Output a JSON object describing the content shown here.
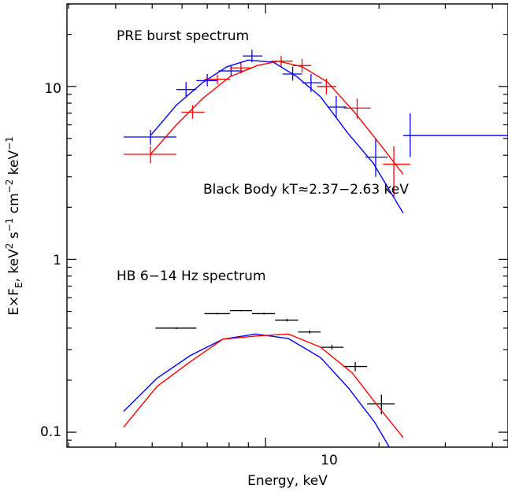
{
  "chart_data": {
    "type": "scatter",
    "xlabel": "Energy, keV",
    "ylabel_parts": {
      "lead": "E×F",
      "sub": "E",
      "mid": ", keV",
      "sup1": "2",
      "s": " s",
      "sup2": "−1",
      "cm": " cm",
      "sup3": "−2",
      "kev": " keV",
      "sup4": "−1"
    },
    "xscale": "log",
    "yscale": "log",
    "xlim": [
      2.97,
      44
    ],
    "ylim": [
      0.082,
      30
    ],
    "x_tick_labels": [
      {
        "value": 10,
        "label": "10"
      }
    ],
    "y_tick_labels": [
      {
        "value": 0.1,
        "label": "0.1"
      },
      {
        "value": 1,
        "label": "1"
      },
      {
        "value": 10,
        "label": "10"
      }
    ],
    "annotations": [
      {
        "text": "PRE burst spectrum"
      },
      {
        "text": "Black Body kT≈2.37−2.63 keV"
      },
      {
        "text": "HB 6−14 Hz spectrum"
      }
    ],
    "series": [
      {
        "color": "#0000ff",
        "style": "errorbar",
        "points": [
          {
            "x": 4.95,
            "y": 5.1,
            "xlo": 4.2,
            "xhi": 5.8,
            "ylo": 4.6,
            "yhi": 5.6
          },
          {
            "x": 6.15,
            "y": 9.6,
            "xlo": 5.8,
            "xhi": 6.55,
            "ylo": 8.6,
            "yhi": 10.6
          },
          {
            "x": 7.0,
            "y": 10.8,
            "xlo": 6.55,
            "xhi": 7.45,
            "ylo": 10.0,
            "yhi": 11.8
          },
          {
            "x": 8.1,
            "y": 12.3,
            "xlo": 7.5,
            "xhi": 8.7,
            "ylo": 11.4,
            "yhi": 13.3
          },
          {
            "x": 9.2,
            "y": 15.0,
            "xlo": 8.7,
            "xhi": 9.8,
            "ylo": 13.8,
            "yhi": 16.3
          },
          {
            "x": 11.8,
            "y": 11.8,
            "xlo": 11.1,
            "xhi": 12.5,
            "ylo": 10.8,
            "yhi": 13.0
          },
          {
            "x": 13.2,
            "y": 10.5,
            "xlo": 12.5,
            "xhi": 14.1,
            "ylo": 9.3,
            "yhi": 11.8
          },
          {
            "x": 15.4,
            "y": 7.6,
            "xlo": 14.6,
            "xhi": 16.4,
            "ylo": 6.6,
            "yhi": 8.8
          },
          {
            "x": 19.6,
            "y": 3.9,
            "xlo": 18.4,
            "xhi": 21.1,
            "ylo": 3.0,
            "yhi": 5.0
          },
          {
            "x": 24.2,
            "y": 5.2,
            "xlo": 23.2,
            "xhi": 44,
            "ylo": 3.9,
            "yhi": 7.0
          }
        ]
      },
      {
        "color": "#ff0000",
        "style": "errorbar",
        "points": [
          {
            "x": 4.95,
            "y": 4.05,
            "xlo": 4.2,
            "xhi": 5.8,
            "ylo": 3.6,
            "yhi": 4.5
          },
          {
            "x": 6.4,
            "y": 7.1,
            "xlo": 5.98,
            "xhi": 6.88,
            "ylo": 6.5,
            "yhi": 7.8
          },
          {
            "x": 7.45,
            "y": 11.0,
            "xlo": 6.88,
            "xhi": 8.05,
            "ylo": 10.3,
            "yhi": 11.7
          },
          {
            "x": 8.6,
            "y": 12.8,
            "xlo": 8.05,
            "xhi": 9.2,
            "ylo": 11.9,
            "yhi": 13.8
          },
          {
            "x": 11.0,
            "y": 14.0,
            "xlo": 10.35,
            "xhi": 11.8,
            "ylo": 13.0,
            "yhi": 15.0
          },
          {
            "x": 12.5,
            "y": 13.2,
            "xlo": 11.8,
            "xhi": 13.2,
            "ylo": 12.0,
            "yhi": 14.4
          },
          {
            "x": 14.5,
            "y": 10.0,
            "xlo": 13.7,
            "xhi": 15.4,
            "ylo": 9.0,
            "yhi": 11.1
          },
          {
            "x": 17.5,
            "y": 7.5,
            "xlo": 16.1,
            "xhi": 19.0,
            "ylo": 6.5,
            "yhi": 8.5
          },
          {
            "x": 21.9,
            "y": 3.55,
            "xlo": 20.5,
            "xhi": 24.2,
            "ylo": 2.3,
            "yhi": 4.5
          }
        ]
      },
      {
        "color": "#000000",
        "style": "errorbar",
        "points": [
          {
            "x": 5.8,
            "y": 0.4,
            "xlo": 5.1,
            "xhi": 6.55,
            "ylo": 0.395,
            "yhi": 0.405
          },
          {
            "x": 7.45,
            "y": 0.485,
            "xlo": 6.88,
            "xhi": 8.05,
            "ylo": 0.48,
            "yhi": 0.49
          },
          {
            "x": 8.6,
            "y": 0.505,
            "xlo": 8.05,
            "xhi": 9.2,
            "ylo": 0.5,
            "yhi": 0.51
          },
          {
            "x": 9.9,
            "y": 0.485,
            "xlo": 9.2,
            "xhi": 10.6,
            "ylo": 0.48,
            "yhi": 0.49
          },
          {
            "x": 11.4,
            "y": 0.445,
            "xlo": 10.6,
            "xhi": 12.2,
            "ylo": 0.437,
            "yhi": 0.453
          },
          {
            "x": 13.1,
            "y": 0.38,
            "xlo": 12.2,
            "xhi": 14.0,
            "ylo": 0.372,
            "yhi": 0.388
          },
          {
            "x": 15.0,
            "y": 0.31,
            "xlo": 14.0,
            "xhi": 16.1,
            "ylo": 0.3,
            "yhi": 0.32
          },
          {
            "x": 17.3,
            "y": 0.24,
            "xlo": 16.1,
            "xhi": 18.6,
            "ylo": 0.225,
            "yhi": 0.255
          },
          {
            "x": 20.3,
            "y": 0.146,
            "xlo": 18.6,
            "xhi": 22.0,
            "ylo": 0.127,
            "yhi": 0.165
          }
        ]
      },
      {
        "color": "#0000ff",
        "style": "line",
        "points": [
          {
            "x": 4.95,
            "y": 5.2
          },
          {
            "x": 5.8,
            "y": 7.8
          },
          {
            "x": 6.8,
            "y": 10.5
          },
          {
            "x": 7.9,
            "y": 13.0
          },
          {
            "x": 9.0,
            "y": 14.2
          },
          {
            "x": 10.5,
            "y": 13.8
          },
          {
            "x": 12.1,
            "y": 11.4
          },
          {
            "x": 14.0,
            "y": 8.7
          },
          {
            "x": 16.5,
            "y": 5.4
          },
          {
            "x": 19.3,
            "y": 3.6
          },
          {
            "x": 23.2,
            "y": 1.85
          }
        ]
      },
      {
        "color": "#ff0000",
        "style": "line",
        "points": [
          {
            "x": 4.95,
            "y": 4.05
          },
          {
            "x": 5.8,
            "y": 6.0
          },
          {
            "x": 6.8,
            "y": 8.5
          },
          {
            "x": 8.05,
            "y": 11.4
          },
          {
            "x": 9.5,
            "y": 13.2
          },
          {
            "x": 10.8,
            "y": 14.0
          },
          {
            "x": 12.5,
            "y": 13.0
          },
          {
            "x": 14.6,
            "y": 10.6
          },
          {
            "x": 17.3,
            "y": 7.0
          },
          {
            "x": 20.5,
            "y": 4.4
          },
          {
            "x": 23.2,
            "y": 3.1
          }
        ]
      },
      {
        "color": "#0000ff",
        "style": "line",
        "points": [
          {
            "x": 4.2,
            "y": 0.132
          },
          {
            "x": 5.15,
            "y": 0.205
          },
          {
            "x": 6.3,
            "y": 0.277
          },
          {
            "x": 7.7,
            "y": 0.345
          },
          {
            "x": 9.4,
            "y": 0.37
          },
          {
            "x": 11.5,
            "y": 0.348
          },
          {
            "x": 14.0,
            "y": 0.27
          },
          {
            "x": 16.6,
            "y": 0.18
          },
          {
            "x": 19.5,
            "y": 0.114
          },
          {
            "x": 21.3,
            "y": 0.082
          }
        ]
      },
      {
        "color": "#ff0000",
        "style": "line",
        "points": [
          {
            "x": 4.2,
            "y": 0.107
          },
          {
            "x": 5.15,
            "y": 0.184
          },
          {
            "x": 6.3,
            "y": 0.255
          },
          {
            "x": 7.7,
            "y": 0.345
          },
          {
            "x": 9.4,
            "y": 0.36
          },
          {
            "x": 11.5,
            "y": 0.37
          },
          {
            "x": 14.0,
            "y": 0.31
          },
          {
            "x": 17.0,
            "y": 0.22
          },
          {
            "x": 19.8,
            "y": 0.143
          },
          {
            "x": 23.2,
            "y": 0.093
          }
        ]
      }
    ]
  }
}
